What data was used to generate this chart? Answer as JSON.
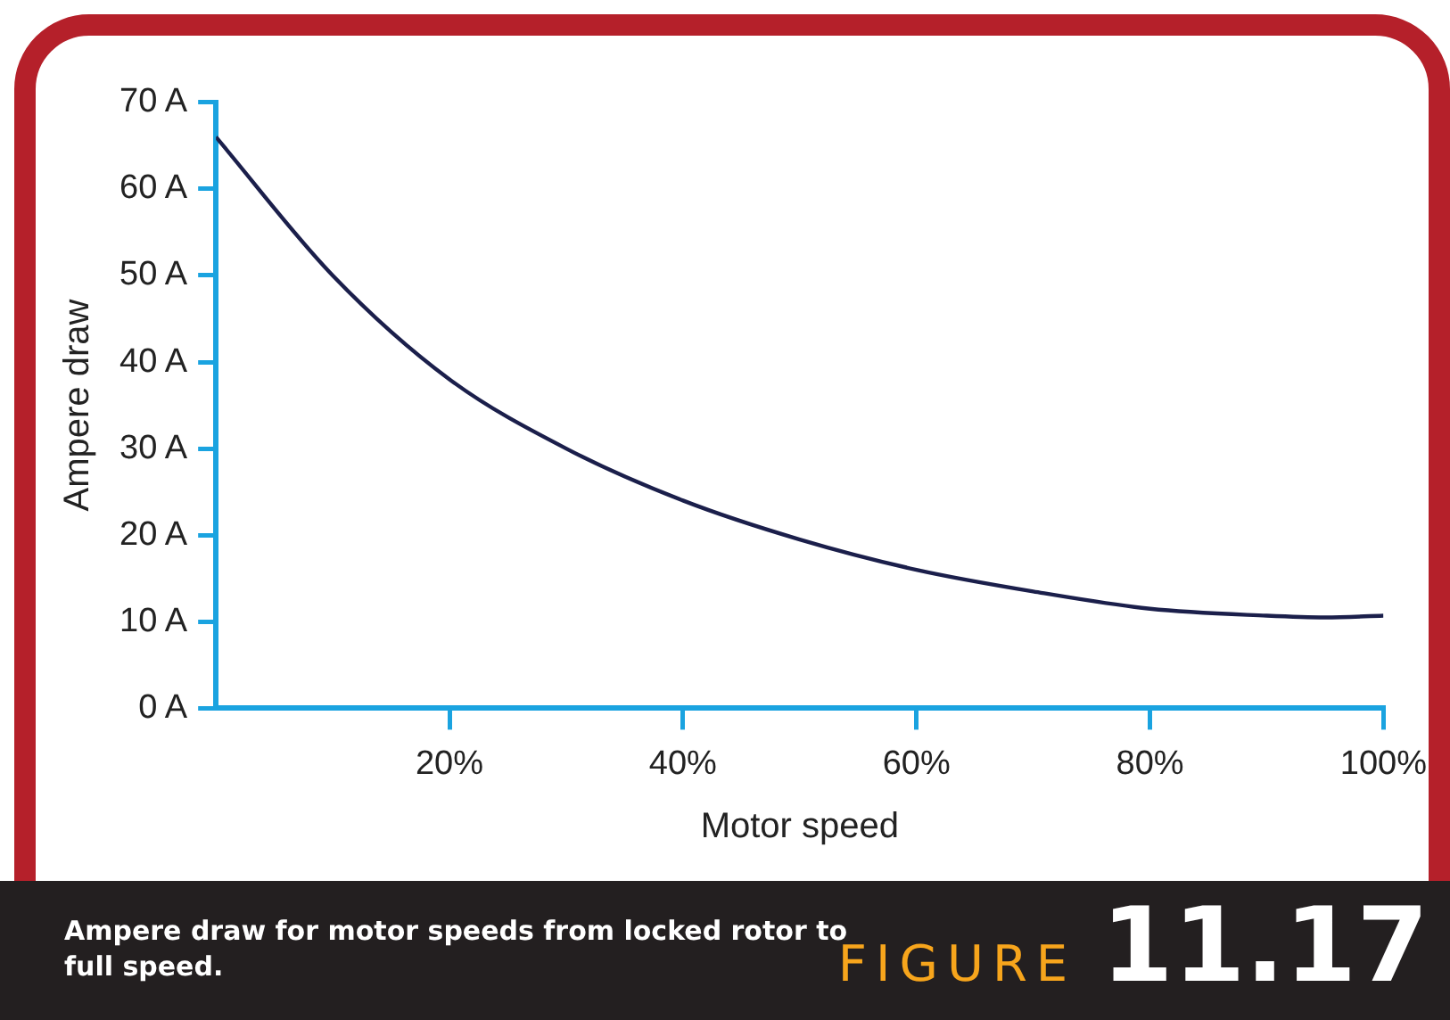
{
  "chart_data": {
    "type": "line",
    "xlabel": "Motor speed",
    "ylabel": "Ampere draw",
    "x": [
      0,
      10,
      20,
      30,
      40,
      50,
      60,
      70,
      80,
      90,
      95,
      100
    ],
    "series": [
      {
        "color": "#1b1f4b",
        "values": [
          66,
          50,
          38,
          30,
          24,
          19.5,
          16,
          13.5,
          11.5,
          10.7,
          10.5,
          10.7
        ]
      }
    ],
    "xlim": [
      0,
      100
    ],
    "xticks": [
      {
        "value": 20,
        "label": "20%"
      },
      {
        "value": 40,
        "label": "40%"
      },
      {
        "value": 60,
        "label": "60%"
      },
      {
        "value": 80,
        "label": "80%"
      },
      {
        "value": 100,
        "label": "100%"
      }
    ],
    "ylim": [
      0,
      70
    ],
    "yticks": [
      {
        "value": 0,
        "label": "0 A"
      },
      {
        "value": 10,
        "label": "10 A"
      },
      {
        "value": 20,
        "label": "20 A"
      },
      {
        "value": 30,
        "label": "30 A"
      },
      {
        "value": 40,
        "label": "40 A"
      },
      {
        "value": 50,
        "label": "50 A"
      },
      {
        "value": 60,
        "label": "60 A"
      },
      {
        "value": 70,
        "label": "70 A"
      }
    ],
    "marker": "none",
    "annotations": [
      "Ampere draw for motor speeds from locked rotor to full speed.",
      "FIGURE 11.17"
    ]
  }
}
